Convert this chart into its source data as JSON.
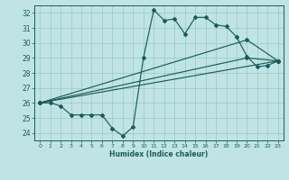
{
  "background_color": "#c0e4e4",
  "grid_color": "#a0cccc",
  "line_color": "#1a5c5c",
  "xlabel": "Humidex (Indice chaleur)",
  "xlim": [
    -0.5,
    23.5
  ],
  "ylim": [
    23.5,
    32.5
  ],
  "yticks": [
    24,
    25,
    26,
    27,
    28,
    29,
    30,
    31,
    32
  ],
  "xticks": [
    0,
    1,
    2,
    3,
    4,
    5,
    6,
    7,
    8,
    9,
    10,
    11,
    12,
    13,
    14,
    15,
    16,
    17,
    18,
    19,
    20,
    21,
    22,
    23
  ],
  "line1_x": [
    0,
    1,
    2,
    3,
    4,
    5,
    6,
    7,
    8,
    9,
    10,
    11,
    12,
    13,
    14,
    15,
    16,
    17,
    18,
    19,
    20,
    21,
    22,
    23
  ],
  "line1_y": [
    26.0,
    26.0,
    25.8,
    25.2,
    25.2,
    25.2,
    25.2,
    24.3,
    23.8,
    24.4,
    29.0,
    32.2,
    31.5,
    31.6,
    30.6,
    31.7,
    31.7,
    31.2,
    31.1,
    30.4,
    29.1,
    28.4,
    28.5,
    28.8
  ],
  "line2_x": [
    0,
    23
  ],
  "line2_y": [
    26.0,
    28.8
  ],
  "line3_x": [
    0,
    20,
    23
  ],
  "line3_y": [
    26.0,
    30.2,
    28.8
  ],
  "line4_x": [
    0,
    20,
    23
  ],
  "line4_y": [
    26.0,
    29.0,
    28.8
  ],
  "figwidth": 3.2,
  "figheight": 2.0,
  "dpi": 100
}
